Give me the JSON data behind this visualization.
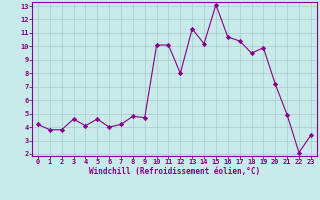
{
  "x": [
    0,
    1,
    2,
    3,
    4,
    5,
    6,
    7,
    8,
    9,
    10,
    11,
    12,
    13,
    14,
    15,
    16,
    17,
    18,
    19,
    20,
    21,
    22,
    23
  ],
  "y": [
    4.2,
    3.8,
    3.8,
    4.6,
    4.1,
    4.6,
    4.0,
    4.2,
    4.8,
    4.7,
    10.1,
    10.1,
    8.0,
    11.3,
    10.2,
    13.1,
    10.7,
    10.4,
    9.5,
    9.9,
    7.2,
    4.9,
    2.1,
    3.4
  ],
  "line_color": "#880088",
  "marker": "D",
  "marker_size": 2.2,
  "bg_color": "#c8eaea",
  "grid_color": "#a8caca",
  "xlabel": "Windchill (Refroidissement éolien,°C)",
  "xlabel_color": "#880088",
  "tick_color": "#880088",
  "spine_color": "#880088",
  "ylim": [
    2,
    13
  ],
  "xlim": [
    -0.5,
    23.5
  ],
  "yticks": [
    2,
    3,
    4,
    5,
    6,
    7,
    8,
    9,
    10,
    11,
    12,
    13
  ],
  "xticks": [
    0,
    1,
    2,
    3,
    4,
    5,
    6,
    7,
    8,
    9,
    10,
    11,
    12,
    13,
    14,
    15,
    16,
    17,
    18,
    19,
    20,
    21,
    22,
    23
  ],
  "tick_fontsize": 5.0,
  "xlabel_fontsize": 5.5
}
